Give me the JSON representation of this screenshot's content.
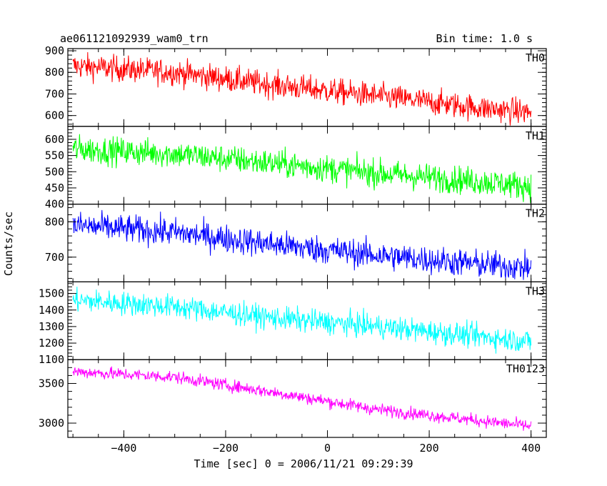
{
  "chart_data": {
    "type": "line",
    "title": "ae061121092939_wam0_trn",
    "subtitle": "Bin time: 1.0 s",
    "xlabel": "Time [sec] 0 = 2006/11/21 09:29:39",
    "ylabel": "Counts/sec",
    "xlim": [
      -510,
      430
    ],
    "xticks": [
      -400,
      -200,
      0,
      200,
      400
    ],
    "xtick_labels": [
      "−400",
      "−200",
      "0",
      "200",
      "400"
    ],
    "grid": false,
    "panels": [
      {
        "name": "TH0",
        "color": "#ff0000",
        "ylim": [
          550,
          910
        ],
        "yticks": [
          600,
          700,
          800,
          900
        ],
        "ytick_labels": [
          "600",
          "700",
          "800",
          "900"
        ],
        "trend": [
          [
            -500,
            830
          ],
          [
            -300,
            800
          ],
          [
            -100,
            740
          ],
          [
            100,
            690
          ],
          [
            300,
            635
          ],
          [
            400,
            615
          ]
        ],
        "noise": 42
      },
      {
        "name": "TH1",
        "color": "#00ff00",
        "ylim": [
          400,
          640
        ],
        "yticks": [
          400,
          450,
          500,
          550,
          600
        ],
        "ytick_labels": [
          "400",
          "450",
          "500",
          "550",
          "600"
        ],
        "trend": [
          [
            -500,
            570
          ],
          [
            -300,
            555
          ],
          [
            -100,
            525
          ],
          [
            100,
            495
          ],
          [
            300,
            470
          ],
          [
            400,
            455
          ]
        ],
        "noise": 30
      },
      {
        "name": "TH2",
        "color": "#0000ff",
        "ylim": [
          630,
          850
        ],
        "yticks": [
          700,
          800
        ],
        "ytick_labels": [
          "700",
          "800"
        ],
        "trend": [
          [
            -500,
            790
          ],
          [
            -300,
            770
          ],
          [
            -100,
            735
          ],
          [
            100,
            705
          ],
          [
            300,
            680
          ],
          [
            400,
            670
          ]
        ],
        "noise": 28
      },
      {
        "name": "TH3",
        "color": "#00ffff",
        "ylim": [
          1100,
          1570
        ],
        "yticks": [
          1100,
          1200,
          1300,
          1400,
          1500
        ],
        "ytick_labels": [
          "1100",
          "1200",
          "1300",
          "1400",
          "1500"
        ],
        "trend": [
          [
            -500,
            1460
          ],
          [
            -300,
            1420
          ],
          [
            -100,
            1350
          ],
          [
            100,
            1300
          ],
          [
            300,
            1240
          ],
          [
            400,
            1210
          ]
        ],
        "noise": 50
      },
      {
        "name": "TH0123",
        "color": "#ff00ff",
        "ylim": [
          2820,
          3800
        ],
        "yticks": [
          3000,
          3500
        ],
        "ytick_labels": [
          "3000",
          "3500"
        ],
        "trend": [
          [
            -500,
            3650
          ],
          [
            -300,
            3580
          ],
          [
            -100,
            3380
          ],
          [
            100,
            3170
          ],
          [
            300,
            3030
          ],
          [
            400,
            2960
          ]
        ],
        "noise": 55
      }
    ]
  }
}
